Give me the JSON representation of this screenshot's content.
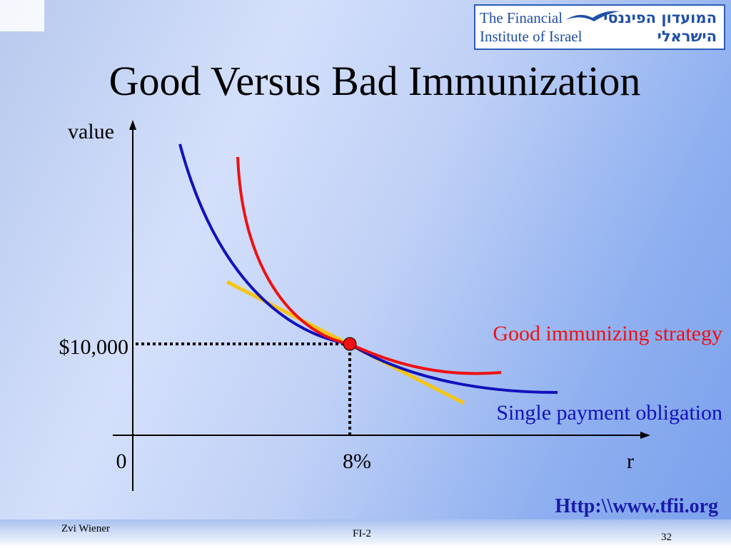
{
  "slide": {
    "title": "Good Versus Bad Immunization",
    "url": "Http:\\\\www.tfii.org"
  },
  "logo": {
    "english_line1": "The Financial",
    "english_line2": "Institute of Israel",
    "hebrew_line1": "המועדון הפיננסי",
    "hebrew_line2": "הישראלי",
    "icon": "seagull-icon"
  },
  "chart": {
    "y_axis_label": "value",
    "x_axis_label": "r",
    "origin_label": "0",
    "value_label": "$10,000",
    "rate_label": "8%",
    "good_strategy_label": "Good immunizing strategy",
    "obligation_label": "Single payment obligation"
  },
  "chart_data": {
    "type": "line",
    "x_tick_labels": [
      "0",
      "8%"
    ],
    "y_tick_labels": [
      "$10,000"
    ],
    "xlabel": "r",
    "ylabel": "value",
    "series": [
      {
        "name": "Good immunizing strategy",
        "color": "#ee1111"
      },
      {
        "name": "Single payment obligation",
        "color": "#1111bb"
      },
      {
        "color": "#f5c518"
      }
    ],
    "intersection": {
      "x": "8%",
      "y": "$10,000",
      "color": "#ee1111"
    }
  },
  "footer": {
    "author": "Zvi Wiener",
    "course": "FI-2",
    "page": "32"
  }
}
